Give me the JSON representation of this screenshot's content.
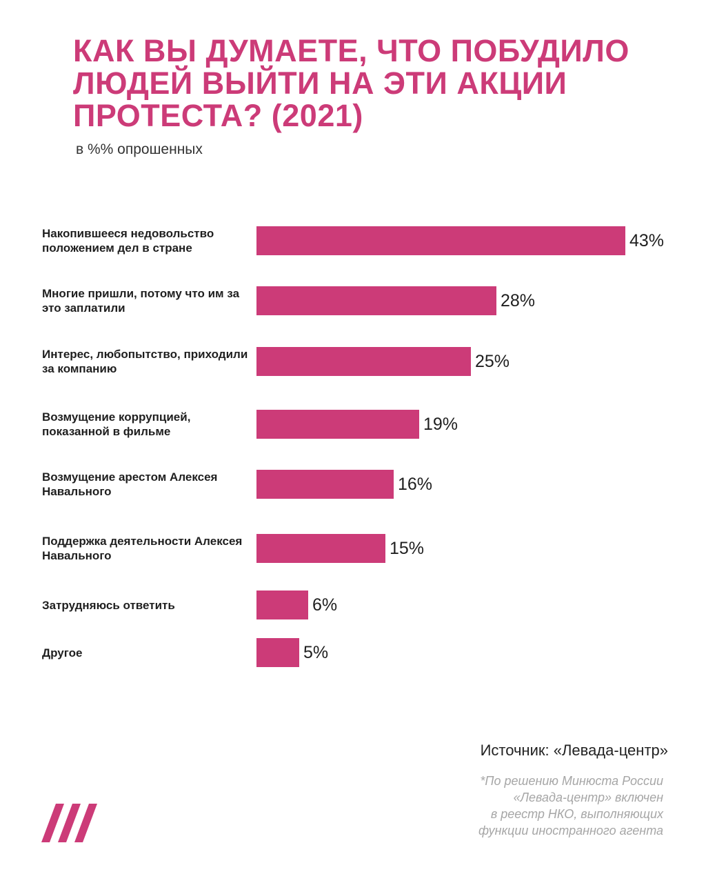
{
  "title": "Как вы думаете, что побудило людей выйти на эти акции протеста? (2021)",
  "subtitle": "в %% опрошенных",
  "colors": {
    "accent": "#cc3b78",
    "text": "#1f1f1f",
    "note": "#a6a6a6"
  },
  "chart_data": {
    "type": "bar",
    "orientation": "horizontal",
    "categories": [
      "Накопившееся недовольство положением дел в стране",
      "Многие пришли, потому что им за это заплатили",
      "Интерес, любопытство, приходили за компанию",
      "Возмущение коррупцией, показанной в фильме",
      "Возмущение арестом Алексея Навального",
      "Поддержка деятельности Алексея Навального",
      "Затрудняюсь ответить",
      "Другое"
    ],
    "values": [
      43,
      28,
      25,
      19,
      16,
      15,
      6,
      5
    ],
    "value_labels": [
      "43%",
      "28%",
      "25%",
      "19%",
      "16%",
      "15%",
      "6%",
      "5%"
    ],
    "unit": "%",
    "title": "Как вы думаете, что побудило людей выйти на эти акции протеста? (2021)",
    "subtitle": "в %% опрошенных",
    "xlabel": "",
    "ylabel": "",
    "xlim": [
      0,
      43
    ],
    "grid": false,
    "legend": "none"
  },
  "source": "Источник: «Левада-центр»",
  "note": [
    "*По решению Минюста России",
    "«Левада-центр» включен",
    "в реестр НКО, выполняющих",
    "функции иностранного агента"
  ],
  "logo_icon": "triple-slash-logo-icon"
}
